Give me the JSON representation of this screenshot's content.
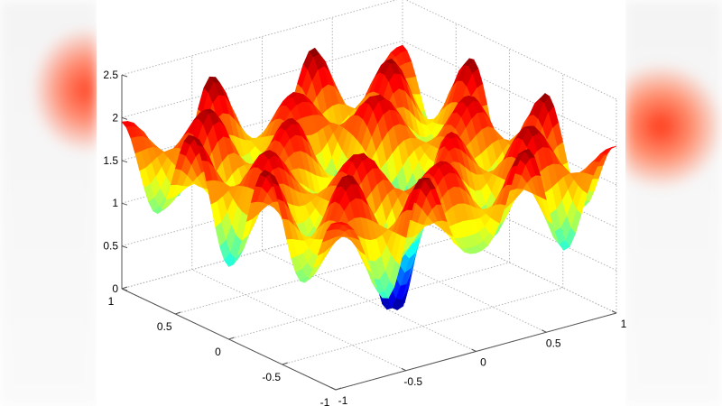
{
  "chart_data": {
    "type": "surface",
    "title": "",
    "xlabel": "",
    "ylabel": "",
    "zlabel": "",
    "xlim": [
      -1,
      1
    ],
    "ylim": [
      -1,
      1
    ],
    "zlim": [
      0,
      2.5
    ],
    "x_ticks": [
      "-1",
      "-0.5",
      "0",
      "0.5",
      "1"
    ],
    "y_ticks": [
      "-1",
      "-0.5",
      "0",
      "0.5",
      "1"
    ],
    "z_ticks": [
      "0",
      "0.5",
      "1",
      "1.5",
      "2",
      "2.5"
    ],
    "grid": true,
    "box": false,
    "colormap": "jet",
    "shading": "interp",
    "surface_summary": {
      "global_min": {
        "x": 0.05,
        "y": -0.1,
        "z": 0.0
      },
      "peak_height_approx": 2.1,
      "ripple_level_approx": 1.55
    }
  }
}
